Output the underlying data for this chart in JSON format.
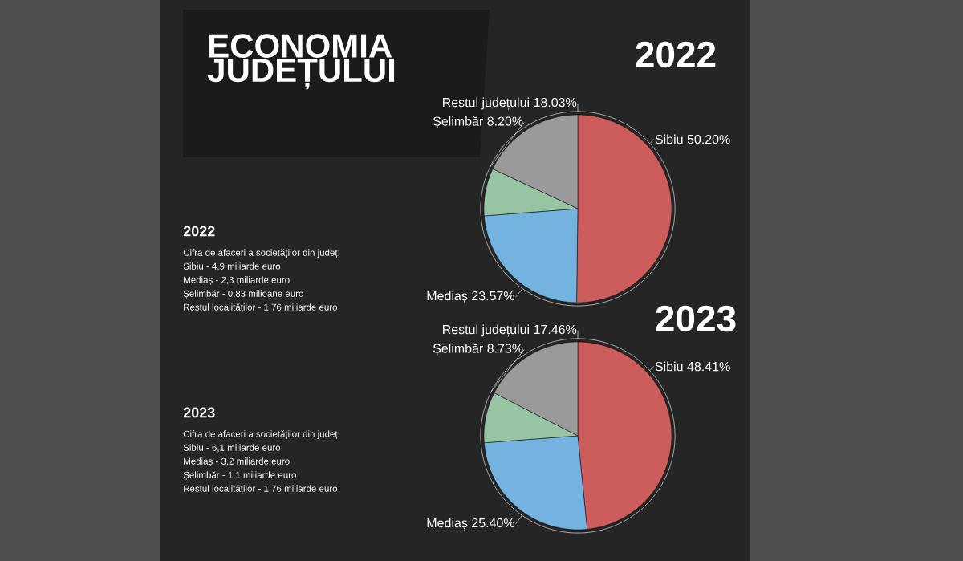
{
  "chart_data": [
    {
      "type": "other",
      "title": "ECONOMIA JUDEȚULUI"
    },
    {
      "type": "pie",
      "title": "2022",
      "categories": [
        "Sibiu",
        "Mediaș",
        "Șelimbăr",
        "Restul județului"
      ],
      "values": [
        50.2,
        23.57,
        8.2,
        18.03
      ],
      "value_labels": [
        "50.20%",
        "23.57%",
        "8.20%",
        "18.03%"
      ],
      "colors": [
        "#cd5c5c",
        "#74b3e0",
        "#97c4a2",
        "#9a9a9a"
      ],
      "annotations": [
        "2022",
        "Cifra de afaceri a societăților din județ:",
        "Sibiu - 4,9 miliarde euro",
        "Mediaș - 2,3 miliarde euro",
        "Șelimbăr - 0,83 milioane euro",
        "Restul localităților - 1,76 miliarde euro"
      ]
    },
    {
      "type": "pie",
      "title": "2023",
      "categories": [
        "Sibiu",
        "Mediaș",
        "Șelimbăr",
        "Restul județului"
      ],
      "values": [
        48.41,
        25.4,
        8.73,
        17.46
      ],
      "value_labels": [
        "48.41%",
        "25.40%",
        "8.73%",
        "17.46%"
      ],
      "colors": [
        "#cd5c5c",
        "#74b3e0",
        "#97c4a2",
        "#9a9a9a"
      ],
      "annotations": [
        "2023",
        "Cifra de afaceri a societăților din județ:",
        "Sibiu - 6,1 miliarde euro",
        "Mediaș - 3,2 miliarde euro",
        "Șelimbăr - 1,1 miliarde euro",
        "Restul localităților - 1,76 miliarde euro"
      ]
    }
  ]
}
